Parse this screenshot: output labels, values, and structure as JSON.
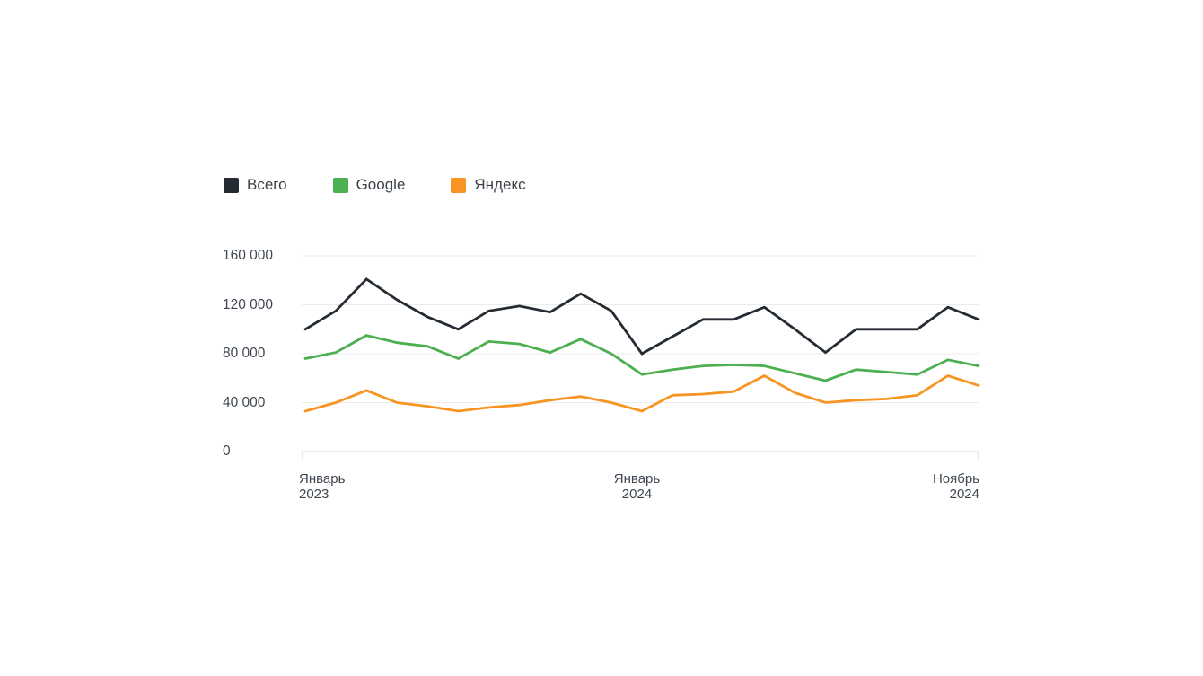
{
  "page": {
    "background": "#ffffff"
  },
  "legend": {
    "items": [
      {
        "label": "Всего",
        "color": "#242b33"
      },
      {
        "label": "Google",
        "color": "#4caf50"
      },
      {
        "label": "Яндекс",
        "color": "#f79422"
      }
    ]
  },
  "chart_data": {
    "type": "line",
    "title": "",
    "legend_position": "top-left",
    "grid": true,
    "ylim": [
      0,
      160000
    ],
    "points_count": 23,
    "x_range_label": "Январь 2023 — Ноябрь 2024",
    "y_ticks": [
      {
        "label": "160 000",
        "value": 160000
      },
      {
        "label": "120 000",
        "value": 120000
      },
      {
        "label": "80 000",
        "value": 80000
      },
      {
        "label": "40 000",
        "value": 40000
      },
      {
        "label": "0",
        "value": 0
      }
    ],
    "x_ticks": [
      {
        "lines": [
          "Январь",
          "2023"
        ],
        "align": "left",
        "pos": 0
      },
      {
        "lines": [
          "Январь",
          "2024"
        ],
        "align": "center",
        "pos": 0.4947
      },
      {
        "lines": [
          "Ноябрь",
          "2024"
        ],
        "align": "right",
        "pos": 1
      }
    ],
    "series": [
      {
        "name": "Всего",
        "color": "#242b33",
        "values": [
          100000,
          115000,
          141000,
          124000,
          110000,
          100000,
          115000,
          119000,
          114000,
          129000,
          115000,
          80000,
          94000,
          108000,
          108000,
          118000,
          100000,
          81000,
          100000,
          100000,
          100000,
          118000,
          108000
        ]
      },
      {
        "name": "Google",
        "color": "#4caf50",
        "values": [
          76000,
          81000,
          95000,
          89000,
          86000,
          76000,
          90000,
          88000,
          81000,
          92000,
          80000,
          63000,
          67000,
          70000,
          71000,
          70000,
          64000,
          58000,
          67000,
          65000,
          63000,
          75000,
          70000
        ]
      },
      {
        "name": "Яндекс",
        "color": "#f79422",
        "values": [
          33000,
          40000,
          50000,
          40000,
          37000,
          33000,
          36000,
          38000,
          42000,
          45000,
          40000,
          33000,
          46000,
          47000,
          49000,
          62000,
          48000,
          40000,
          42000,
          43000,
          46000,
          62000,
          54000
        ]
      }
    ],
    "colors": {
      "grid": "#ececec",
      "axis": "#d9d9d9",
      "tick": "#cfcfcf",
      "axis_text": "#3f4750",
      "legend_text": "#3a4148"
    }
  }
}
